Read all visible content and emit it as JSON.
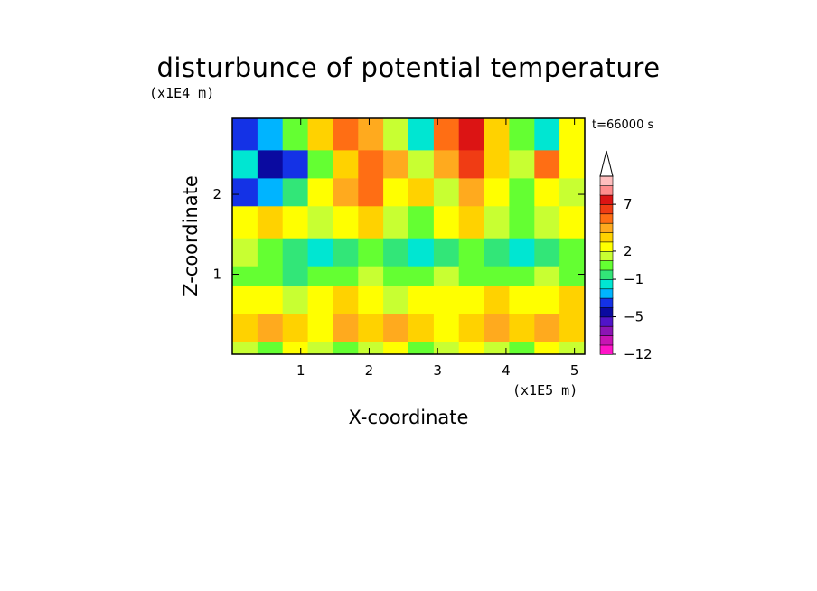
{
  "chart_data": {
    "type": "heatmap",
    "title": "disturbunce of potential temperature",
    "xlabel": "X-coordinate",
    "ylabel": "Z-coordinate",
    "x_unit": "(x1E5 m)",
    "y_unit": "(x1E4 m)",
    "time_label": "t=66000 s",
    "xlim": [
      0,
      5.15
    ],
    "ylim": [
      0,
      2.95
    ],
    "x_ticks": [
      1,
      2,
      3,
      4,
      5
    ],
    "x_tick_labels": [
      "1",
      "2",
      "3",
      "4",
      "5"
    ],
    "y_ticks": [
      1,
      2
    ],
    "y_tick_labels": [
      "1",
      "2"
    ],
    "colorbar": {
      "labels": [
        {
          "value": 7,
          "text": "7"
        },
        {
          "value": 2,
          "text": "2"
        },
        {
          "value": -1,
          "text": "−1"
        },
        {
          "value": -5,
          "text": "−5"
        },
        {
          "value": -12,
          "text": "−12"
        }
      ],
      "levels": [
        -12,
        -10,
        -8,
        -6,
        -5,
        -4,
        -3,
        -2,
        -1,
        0,
        1,
        2,
        3,
        4,
        5,
        6,
        7,
        8,
        9
      ],
      "colors": [
        "#ff14c8",
        "#c814b4",
        "#8c14b4",
        "#5014c8",
        "#0a0aa0",
        "#1432e6",
        "#00b4ff",
        "#00e6d2",
        "#32e678",
        "#64ff32",
        "#c8ff32",
        "#ffff00",
        "#ffd200",
        "#ffaa1e",
        "#ff6e14",
        "#f03c14",
        "#dc1414",
        "#ff8c8c",
        "#ffbebe"
      ],
      "extend": "max"
    },
    "layers": [
      {
        "z_range": [
          2.55,
          2.95
        ],
        "dominant": "mixed",
        "values": [
          -4,
          -3,
          0,
          3,
          5,
          4,
          1,
          -2,
          5,
          7,
          3,
          0,
          -2,
          2
        ]
      },
      {
        "z_range": [
          2.2,
          2.55
        ],
        "dominant": "mixed",
        "values": [
          -2,
          -5,
          -4,
          0,
          3,
          5,
          4,
          1,
          4,
          6,
          3,
          1,
          5,
          2
        ]
      },
      {
        "z_range": [
          1.85,
          2.2
        ],
        "dominant": "mixed",
        "values": [
          -4,
          -3,
          -1,
          2,
          4,
          5,
          2,
          3,
          1,
          4,
          2,
          0,
          2,
          1
        ]
      },
      {
        "z_range": [
          1.45,
          1.85
        ],
        "dominant": "yellow-orange",
        "values": [
          2,
          3,
          2,
          1,
          2,
          3,
          1,
          0,
          2,
          3,
          1,
          0,
          1,
          2
        ]
      },
      {
        "z_range": [
          1.1,
          1.45
        ],
        "dominant": "cyan-green",
        "values": [
          1,
          0,
          -1,
          -2,
          -1,
          0,
          -1,
          -2,
          -1,
          0,
          -1,
          -2,
          -1,
          0
        ]
      },
      {
        "z_range": [
          0.85,
          1.1
        ],
        "dominant": "green",
        "values": [
          0,
          0,
          -1,
          0,
          0,
          1,
          0,
          0,
          1,
          0,
          0,
          0,
          1,
          0
        ]
      },
      {
        "z_range": [
          0.5,
          0.85
        ],
        "dominant": "yellow",
        "values": [
          2,
          2,
          1,
          2,
          3,
          2,
          1,
          2,
          2,
          2,
          3,
          2,
          2,
          3
        ]
      },
      {
        "z_range": [
          0.15,
          0.5
        ],
        "dominant": "orange",
        "values": [
          3,
          4,
          3,
          2,
          4,
          3,
          4,
          3,
          2,
          3,
          4,
          3,
          4,
          3
        ]
      },
      {
        "z_range": [
          0,
          0.15
        ],
        "dominant": "green-yellow",
        "values": [
          1,
          0,
          2,
          1,
          0,
          1,
          2,
          0,
          1,
          2,
          1,
          0,
          2,
          1
        ]
      }
    ]
  }
}
